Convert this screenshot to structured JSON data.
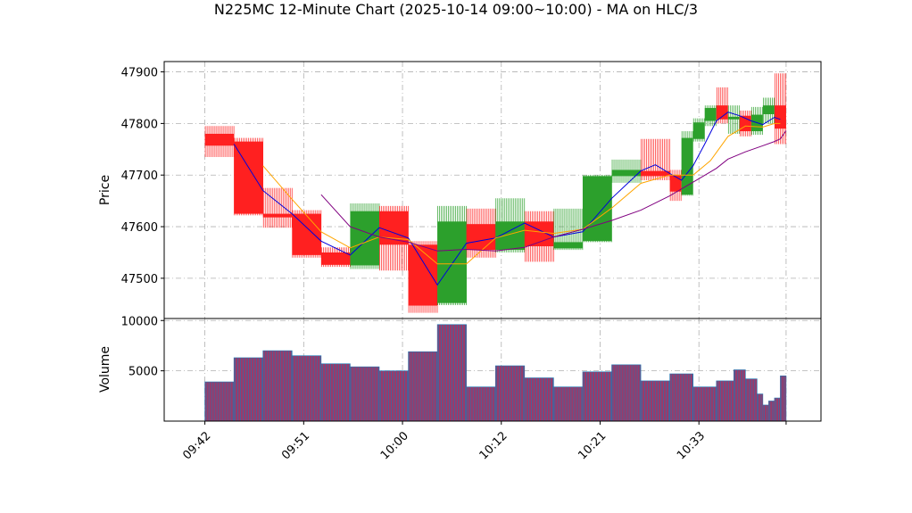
{
  "chart_data": {
    "type": "candlestick",
    "title": "N225MC 12-Minute Chart (2025-10-14 09:00~10:00) - MA on HLC/3",
    "price_panel": {
      "ylabel": "Price",
      "ylim": [
        47422,
        47920
      ],
      "yticks": [
        47500,
        47600,
        47700,
        47800,
        47900
      ],
      "grid": true
    },
    "volume_panel": {
      "ylabel": "Volume",
      "ylim": [
        0,
        10200
      ],
      "yticks": [
        5000,
        10000
      ],
      "ytick_labels": [
        "5000",
        "10000"
      ],
      "grid": true
    },
    "x_index_range": [
      -0.7,
      10.6
    ],
    "xticks": [
      {
        "pos": 0,
        "label": "09:42"
      },
      {
        "pos": 1.7,
        "label": "09:51"
      },
      {
        "pos": 3.4,
        "label": "10:00"
      },
      {
        "pos": 5.1,
        "label": "10:12"
      },
      {
        "pos": 6.8,
        "label": "10:21"
      },
      {
        "pos": 8.5,
        "label": "10:33"
      },
      {
        "pos": 10.0,
        "label": ""
      }
    ],
    "colors": {
      "up": "#2ca02c",
      "down": "#ff2020",
      "ma_fast": "#0000dd",
      "ma_mid": "#ffa500",
      "ma_slow": "#800080",
      "volume": "#9a3a6a",
      "volume_edge": "#1f77b4",
      "grid": "#b0b0b0"
    },
    "candles": [
      {
        "x": 0.0,
        "w": 0.5,
        "open": 47780,
        "high": 47795,
        "low": 47735,
        "close": 47757
      },
      {
        "x": 0.5,
        "w": 0.5,
        "open": 47765,
        "high": 47772,
        "low": 47622,
        "close": 47625
      },
      {
        "x": 1.0,
        "w": 0.5,
        "open": 47625,
        "high": 47675,
        "low": 47598,
        "close": 47618
      },
      {
        "x": 1.5,
        "w": 0.5,
        "open": 47625,
        "high": 47632,
        "low": 47540,
        "close": 47545
      },
      {
        "x": 2.0,
        "w": 0.5,
        "open": 47550,
        "high": 47560,
        "low": 47522,
        "close": 47526
      },
      {
        "x": 2.5,
        "w": 0.5,
        "open": 47525,
        "high": 47645,
        "low": 47518,
        "close": 47630
      },
      {
        "x": 3.0,
        "w": 0.5,
        "open": 47630,
        "high": 47640,
        "low": 47515,
        "close": 47565
      },
      {
        "x": 3.5,
        "w": 0.5,
        "open": 47565,
        "high": 47572,
        "low": 47433,
        "close": 47447
      },
      {
        "x": 4.0,
        "w": 0.5,
        "open": 47452,
        "high": 47640,
        "low": 47448,
        "close": 47610
      },
      {
        "x": 4.5,
        "w": 0.5,
        "open": 47605,
        "high": 47635,
        "low": 47540,
        "close": 47555
      },
      {
        "x": 5.0,
        "w": 0.5,
        "open": 47555,
        "high": 47655,
        "low": 47550,
        "close": 47610
      },
      {
        "x": 5.5,
        "w": 0.5,
        "open": 47610,
        "high": 47630,
        "low": 47532,
        "close": 47562
      },
      {
        "x": 6.0,
        "w": 0.5,
        "open": 47558,
        "high": 47635,
        "low": 47555,
        "close": 47570
      },
      {
        "x": 6.5,
        "w": 0.5,
        "open": 47572,
        "high": 47700,
        "low": 47570,
        "close": 47698
      },
      {
        "x": 7.0,
        "w": 0.5,
        "open": 47698,
        "high": 47730,
        "low": 47685,
        "close": 47710
      },
      {
        "x": 7.5,
        "w": 0.5,
        "open": 47708,
        "high": 47770,
        "low": 47690,
        "close": 47698
      },
      {
        "x": 8.0,
        "w": 0.2,
        "open": 47700,
        "high": 47710,
        "low": 47650,
        "close": 47668
      },
      {
        "x": 8.2,
        "w": 0.2,
        "open": 47662,
        "high": 47785,
        "low": 47660,
        "close": 47772
      },
      {
        "x": 8.4,
        "w": 0.2,
        "open": 47770,
        "high": 47810,
        "low": 47765,
        "close": 47802
      },
      {
        "x": 8.6,
        "w": 0.2,
        "open": 47805,
        "high": 47835,
        "low": 47795,
        "close": 47830
      },
      {
        "x": 8.8,
        "w": 0.2,
        "open": 47835,
        "high": 47870,
        "low": 47800,
        "close": 47808
      },
      {
        "x": 9.0,
        "w": 0.2,
        "open": 47808,
        "high": 47835,
        "low": 47780,
        "close": 47813
      },
      {
        "x": 9.2,
        "w": 0.2,
        "open": 47815,
        "high": 47825,
        "low": 47775,
        "close": 47785
      },
      {
        "x": 9.4,
        "w": 0.2,
        "open": 47785,
        "high": 47832,
        "low": 47778,
        "close": 47817
      },
      {
        "x": 9.6,
        "w": 0.2,
        "open": 47818,
        "high": 47850,
        "low": 47800,
        "close": 47835
      },
      {
        "x": 9.8,
        "w": 0.2,
        "open": 47835,
        "high": 47897,
        "low": 47760,
        "close": 47790
      }
    ],
    "volume": [
      {
        "x": 0.0,
        "w": 0.5,
        "v": 3900
      },
      {
        "x": 0.5,
        "w": 0.5,
        "v": 6300
      },
      {
        "x": 1.0,
        "w": 0.5,
        "v": 7000
      },
      {
        "x": 1.5,
        "w": 0.5,
        "v": 6500
      },
      {
        "x": 2.0,
        "w": 0.5,
        "v": 5700
      },
      {
        "x": 2.5,
        "w": 0.5,
        "v": 5400
      },
      {
        "x": 3.0,
        "w": 0.5,
        "v": 5000
      },
      {
        "x": 3.5,
        "w": 0.5,
        "v": 6900
      },
      {
        "x": 4.0,
        "w": 0.5,
        "v": 9600
      },
      {
        "x": 4.5,
        "w": 0.5,
        "v": 3400
      },
      {
        "x": 5.0,
        "w": 0.5,
        "v": 5500
      },
      {
        "x": 5.5,
        "w": 0.5,
        "v": 4300
      },
      {
        "x": 6.0,
        "w": 0.5,
        "v": 3400
      },
      {
        "x": 6.5,
        "w": 0.5,
        "v": 4900
      },
      {
        "x": 7.0,
        "w": 0.5,
        "v": 5600
      },
      {
        "x": 7.5,
        "w": 0.5,
        "v": 4000
      },
      {
        "x": 8.0,
        "w": 0.4,
        "v": 4700
      },
      {
        "x": 8.4,
        "w": 0.4,
        "v": 3400
      },
      {
        "x": 8.8,
        "w": 0.3,
        "v": 4000
      },
      {
        "x": 9.1,
        "w": 0.2,
        "v": 5100
      },
      {
        "x": 9.3,
        "w": 0.2,
        "v": 4200
      },
      {
        "x": 9.5,
        "w": 0.1,
        "v": 2700
      },
      {
        "x": 9.6,
        "w": 0.1,
        "v": 1600
      },
      {
        "x": 9.7,
        "w": 0.1,
        "v": 2000
      },
      {
        "x": 9.8,
        "w": 0.1,
        "v": 2300
      },
      {
        "x": 9.9,
        "w": 0.1,
        "v": 4500
      }
    ],
    "ma_series": [
      {
        "color": "#0000dd",
        "points": [
          [
            0.5,
            47760
          ],
          [
            1.0,
            47670
          ],
          [
            1.5,
            47625
          ],
          [
            2.0,
            47572
          ],
          [
            2.5,
            47545
          ],
          [
            3.0,
            47598
          ],
          [
            3.5,
            47578
          ],
          [
            4.0,
            47487
          ],
          [
            4.5,
            47568
          ],
          [
            5.0,
            47578
          ],
          [
            5.5,
            47607
          ],
          [
            6.0,
            47580
          ],
          [
            6.5,
            47590
          ],
          [
            7.0,
            47655
          ],
          [
            7.5,
            47708
          ],
          [
            7.75,
            47720
          ],
          [
            8.0,
            47703
          ],
          [
            8.2,
            47690
          ],
          [
            8.4,
            47718
          ],
          [
            8.6,
            47760
          ],
          [
            8.8,
            47805
          ],
          [
            9.0,
            47822
          ],
          [
            9.2,
            47815
          ],
          [
            9.4,
            47805
          ],
          [
            9.6,
            47798
          ],
          [
            9.8,
            47812
          ],
          [
            9.9,
            47808
          ]
        ]
      },
      {
        "color": "#ffa500",
        "points": [
          [
            1.0,
            47718
          ],
          [
            1.5,
            47653
          ],
          [
            2.0,
            47590
          ],
          [
            2.5,
            47559
          ],
          [
            3.0,
            47580
          ],
          [
            3.5,
            47575
          ],
          [
            4.0,
            47528
          ],
          [
            4.5,
            47528
          ],
          [
            5.0,
            47578
          ],
          [
            5.5,
            47593
          ],
          [
            6.0,
            47587
          ],
          [
            6.5,
            47595
          ],
          [
            7.0,
            47636
          ],
          [
            7.5,
            47684
          ],
          [
            8.0,
            47700
          ],
          [
            8.4,
            47700
          ],
          [
            8.7,
            47728
          ],
          [
            9.0,
            47775
          ],
          [
            9.3,
            47795
          ],
          [
            9.6,
            47793
          ],
          [
            9.8,
            47800
          ],
          [
            9.9,
            47800
          ]
        ]
      },
      {
        "color": "#800080",
        "points": [
          [
            2.0,
            47662
          ],
          [
            2.5,
            47600
          ],
          [
            3.0,
            47580
          ],
          [
            3.5,
            47570
          ],
          [
            4.0,
            47553
          ],
          [
            4.5,
            47556
          ],
          [
            5.0,
            47553
          ],
          [
            5.5,
            47560
          ],
          [
            6.0,
            47580
          ],
          [
            6.5,
            47595
          ],
          [
            7.0,
            47612
          ],
          [
            7.5,
            47632
          ],
          [
            8.0,
            47660
          ],
          [
            8.5,
            47693
          ],
          [
            8.8,
            47713
          ],
          [
            9.0,
            47731
          ],
          [
            9.3,
            47745
          ],
          [
            9.6,
            47757
          ],
          [
            9.8,
            47765
          ],
          [
            9.9,
            47770
          ],
          [
            10.0,
            47786
          ]
        ]
      }
    ]
  }
}
